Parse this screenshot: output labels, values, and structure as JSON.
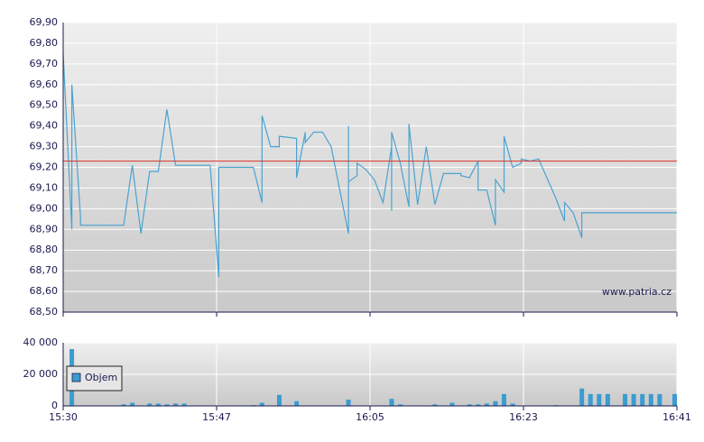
{
  "chart_data": [
    {
      "type": "line",
      "color": "#4aa3d0",
      "watermark": "www.patria.cz",
      "reference_line": 69.23,
      "reference_color": "#d9342b",
      "x": [
        "15:30",
        "15:31",
        "15:31",
        "15:32",
        "15:32",
        "15:37",
        "15:38",
        "15:39",
        "15:40",
        "15:41",
        "15:42",
        "15:43",
        "15:47",
        "15:48",
        "15:48",
        "15:52",
        "15:53",
        "15:53",
        "15:53",
        "15:54",
        "15:55",
        "15:55",
        "15:57",
        "15:57",
        "15:58",
        "15:58",
        "15:59",
        "16:00",
        "16:01",
        "16:03",
        "16:03",
        "16:03",
        "16:04",
        "16:04",
        "16:05",
        "16:06",
        "16:07",
        "16:08",
        "16:08",
        "16:08",
        "16:09",
        "16:10",
        "16:10",
        "16:11",
        "16:12",
        "16:13",
        "16:14",
        "16:16",
        "16:16",
        "16:17",
        "16:18",
        "16:18",
        "16:19",
        "16:20",
        "16:20",
        "16:21",
        "16:21",
        "16:21",
        "16:22",
        "16:23",
        "16:23",
        "16:24",
        "16:25",
        "16:27",
        "16:28",
        "16:28",
        "16:29",
        "16:29",
        "16:30",
        "16:30",
        "16:41"
      ],
      "values": [
        69.75,
        68.9,
        69.6,
        68.96,
        68.92,
        68.92,
        69.21,
        68.88,
        69.18,
        69.18,
        69.48,
        69.21,
        69.21,
        68.67,
        69.2,
        69.2,
        69.03,
        69.03,
        69.45,
        69.3,
        69.3,
        69.35,
        69.34,
        69.15,
        69.37,
        69.32,
        69.37,
        69.37,
        69.3,
        68.88,
        69.4,
        69.13,
        69.16,
        69.22,
        69.19,
        69.14,
        69.03,
        69.3,
        68.99,
        69.37,
        69.22,
        69.01,
        69.41,
        69.02,
        69.3,
        69.02,
        69.17,
        69.17,
        69.16,
        69.15,
        69.23,
        69.09,
        69.09,
        68.92,
        69.14,
        69.08,
        69.35,
        69.35,
        69.2,
        69.22,
        69.24,
        69.23,
        69.24,
        69.05,
        68.94,
        69.03,
        68.98,
        68.98,
        68.86,
        68.98,
        68.98
      ],
      "xlim": [
        "15:30",
        "16:41"
      ],
      "ylim": [
        68.5,
        69.9
      ],
      "yticks": [
        {
          "value": 68.5,
          "label": "68,50"
        },
        {
          "value": 68.6,
          "label": "68,60"
        },
        {
          "value": 68.7,
          "label": "68,70"
        },
        {
          "value": 68.8,
          "label": "68,80"
        },
        {
          "value": 68.9,
          "label": "68,90"
        },
        {
          "value": 69.0,
          "label": "69,00"
        },
        {
          "value": 69.1,
          "label": "69,10"
        },
        {
          "value": 69.2,
          "label": "69,20"
        },
        {
          "value": 69.3,
          "label": "69,30"
        },
        {
          "value": 69.4,
          "label": "69,40"
        },
        {
          "value": 69.5,
          "label": "69,50"
        },
        {
          "value": 69.6,
          "label": "69,60"
        },
        {
          "value": 69.7,
          "label": "69,70"
        },
        {
          "value": 69.8,
          "label": "69,80"
        },
        {
          "value": 69.9,
          "label": "69,90"
        }
      ],
      "grid": true
    },
    {
      "type": "bar",
      "x": [
        "15:31",
        "15:37",
        "15:38",
        "15:40",
        "15:41",
        "15:42",
        "15:43",
        "15:44",
        "15:52",
        "15:53",
        "15:55",
        "15:57",
        "16:03",
        "16:08",
        "16:09",
        "16:13",
        "16:15",
        "16:17",
        "16:18",
        "16:19",
        "16:20",
        "16:21",
        "16:22",
        "16:27",
        "16:30",
        "16:31",
        "16:32",
        "16:33",
        "16:35",
        "16:36",
        "16:37",
        "16:38",
        "16:39",
        "16:41"
      ],
      "series": [
        {
          "name": "Objem",
          "color": "#3a9ccf",
          "values": [
            36000,
            1000,
            2000,
            1500,
            1500,
            1000,
            1500,
            1500,
            500,
            2000,
            7000,
            3000,
            4000,
            4500,
            1000,
            1000,
            2000,
            1000,
            1000,
            1500,
            3000,
            7500,
            1500,
            500,
            11000,
            7500,
            7500,
            7500,
            7500,
            7500,
            7500,
            7500,
            7500,
            7500
          ]
        }
      ],
      "xlim": [
        "15:30",
        "16:41"
      ],
      "xticks": [
        {
          "value": "15:30",
          "label": "15:30"
        },
        {
          "value": "15:47:45",
          "label": "15:47"
        },
        {
          "value": "16:05:30",
          "label": "16:05"
        },
        {
          "value": "16:23:15",
          "label": "16:23"
        },
        {
          "value": "16:41",
          "label": "16:41"
        }
      ],
      "ylim": [
        0,
        40000
      ],
      "yticks": [
        {
          "value": 0,
          "label": "0"
        },
        {
          "value": 20000,
          "label": "20 000"
        },
        {
          "value": 40000,
          "label": "40 000"
        }
      ],
      "grid": true,
      "legend": "upper-left"
    }
  ]
}
